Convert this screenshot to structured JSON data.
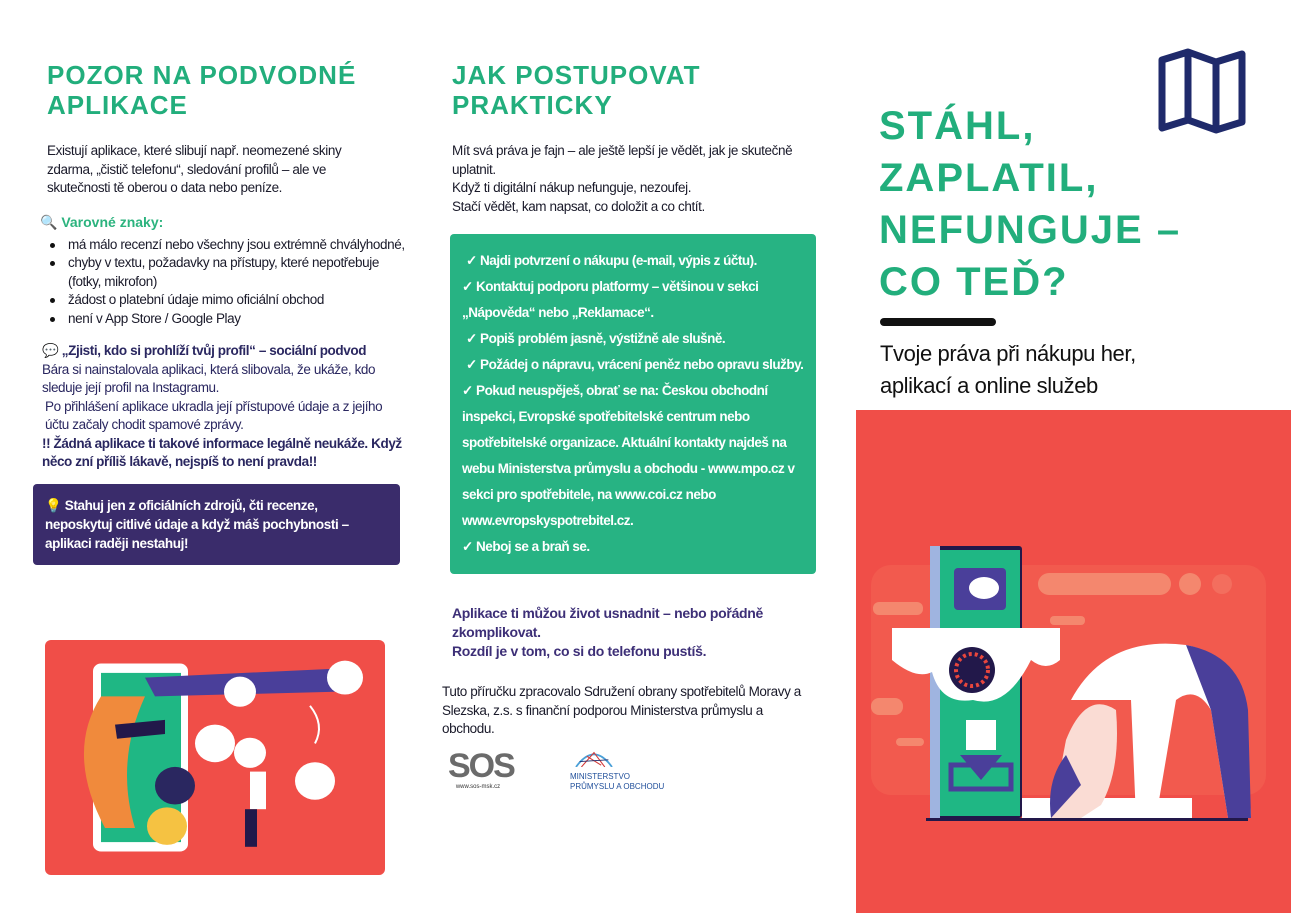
{
  "col1": {
    "heading": "POZOR NA PODVODNÉ APLIKACE",
    "intro": "Existují aplikace, které slibují např. neomezené skiny zdarma, „čistič telefonu“, sledování profilů – ale ve skutečnosti tě oberou o data nebo peníze.",
    "warning_icon": "magnifier-icon",
    "warning_title": "Varovné znaky:",
    "warnings": [
      "má málo recenzí nebo všechny jsou extrémně chvályhodné,",
      "chyby v textu, požadavky na přístupy, které nepotřebuje (fotky, mikrofon)",
      "žádost o platební údaje mimo oficiální obchod",
      "není v App Store / Google Play"
    ],
    "story_icon": "speech-bubble-icon",
    "story_title": "„Zjisti, kdo si prohlíží tvůj profil“ – sociální podvod",
    "story_lines": [
      "Bára si nainstalovala aplikaci, která slibovala, že ukáže, kdo sleduje její profil na Instagramu.",
      "Po přihlášení aplikace ukradla její přístupové údaje a z jejího účtu začaly chodit spamové zprávy."
    ],
    "story_warning": "!! Žádná aplikace ti takové informace legálně neukáže. Když něco zní příliš lákavě, nejspíš to není pravda!!",
    "tip_icon": "lightbulb-icon",
    "tip": "Stahuj jen z oficiálních zdrojů, čti recenze, neposkytuj citlivé údaje a když máš pochybnosti – aplikaci raději nestahuj!"
  },
  "col2": {
    "heading": "JAK POSTUPOVAT PRAKTICKY",
    "intro_lines": [
      "Mít svá práva je fajn – ale ještě lepší je vědět, jak je skutečně uplatnit.",
      "Když ti digitální nákup nefunguje, nezoufej.",
      "Stačí vědět, kam napsat, co doložit a co chtít."
    ],
    "steps": [
      "✓ Najdi potvrzení o nákupu (e-mail, výpis z účtu).",
      "✓ Kontaktuj podporu platformy – většinou v sekci „Nápověda“ nebo „Reklamace“.",
      "✓ Popiš problém jasně, výstižně ale slušně.",
      "✓ Požádej o nápravu, vrácení peněz nebo opravu služby.",
      "✓  Pokud neuspěješ, obrať se na: Českou obchodní inspekci, Evropské spotřebitelské centrum nebo spotřebitelské organizace. Aktuální kontakty najdeš na webu Ministerstva průmyslu a obchodu - www.mpo.cz v sekci pro spotřebitele, na www.coi.cz nebo www.evropskyspotrebitel.cz.",
      "✓ Neboj se a braň se."
    ],
    "closing_lines": [
      "Aplikace ti můžou život usnadnit – nebo pořádně zkomplikovat.",
      "Rozdíl je v tom, co si do telefonu pustíš."
    ],
    "credit": "Tuto příručku zpracovalo Sdružení obrany spotřebitelů Moravy a Slezska, z.s. s finanční podporou Ministerstva průmyslu a obchodu.",
    "logo_sos": {
      "text": "SOS",
      "url": "www.sos-msk.cz"
    },
    "logo_mpo": {
      "line1": "MINISTERSTVO",
      "line2": "PRŮMYSLU A OBCHODU"
    }
  },
  "col3": {
    "map_icon": "map-icon",
    "title_lines": [
      "STÁHL,",
      "ZAPLATIL,",
      "NEFUNGUJE –",
      "CO TEĎ?"
    ],
    "subtitle": "Tvoje práva při nákupu her, aplikací a online služeb"
  },
  "colors": {
    "green": "#22ae7c",
    "purple": "#3a2c6b",
    "red": "#f04e48",
    "navy": "#1f2a6b"
  }
}
